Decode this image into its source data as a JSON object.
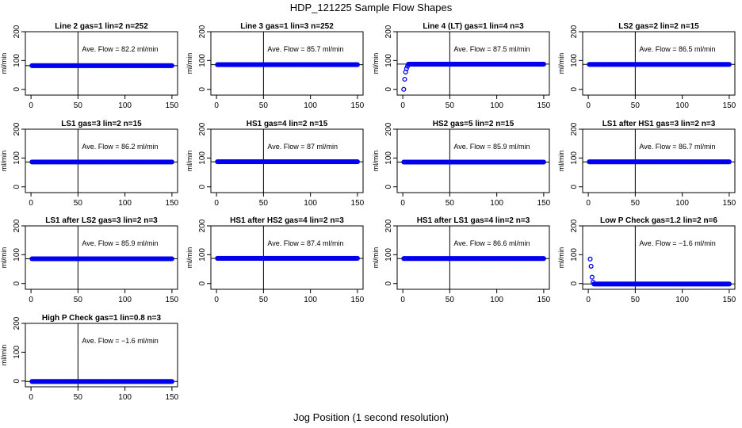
{
  "figure": {
    "title": "HDP_121225  Sample Flow Shapes",
    "xlabel": "Jog Position (1 second resolution)"
  },
  "chart_data": [
    {
      "type": "scatter",
      "title": "Line 2 gas=1 lin=2 n=252",
      "annotation": "Ave. Flow =  82.2  ml/min",
      "ylabel": "ml/min",
      "xlim": [
        0,
        150
      ],
      "ylim": [
        -20,
        200
      ],
      "xticks": [
        0,
        50,
        100,
        150
      ],
      "yticks": [
        0,
        100,
        200
      ],
      "vline_x": 50,
      "hline_y": 82.2,
      "x_range": [
        1,
        150
      ],
      "early_points": [],
      "flow_level": 82.2
    },
    {
      "type": "scatter",
      "title": "Line 3 gas=1 lin=3 n=252",
      "annotation": "Ave. Flow =  85.7  ml/min",
      "ylabel": "ml/min",
      "xlim": [
        0,
        150
      ],
      "ylim": [
        -20,
        200
      ],
      "xticks": [
        0,
        50,
        100,
        150
      ],
      "yticks": [
        0,
        100,
        200
      ],
      "vline_x": 50,
      "hline_y": 85.7,
      "x_range": [
        1,
        150
      ],
      "early_points": [],
      "flow_level": 85.7
    },
    {
      "type": "scatter",
      "title": "Line 4 (LT) gas=1 lin=4 n=3",
      "annotation": "Ave. Flow =  87.5  ml/min",
      "ylabel": "ml/min",
      "xlim": [
        0,
        150
      ],
      "ylim": [
        -20,
        200
      ],
      "xticks": [
        0,
        50,
        100,
        150
      ],
      "yticks": [
        0,
        100,
        200
      ],
      "vline_x": 50,
      "hline_y": 87.5,
      "x_range": [
        6,
        150
      ],
      "early_points": [
        [
          1,
          0
        ],
        [
          2,
          35
        ],
        [
          3,
          60
        ],
        [
          4,
          72
        ],
        [
          5,
          80
        ]
      ],
      "flow_level": 87.5
    },
    {
      "type": "scatter",
      "title": "LS2 gas=2 lin=2 n=15",
      "annotation": "Ave. Flow =  86.5  ml/min",
      "ylabel": "ml/min",
      "xlim": [
        0,
        150
      ],
      "ylim": [
        -20,
        200
      ],
      "xticks": [
        0,
        50,
        100,
        150
      ],
      "yticks": [
        0,
        100,
        200
      ],
      "vline_x": 50,
      "hline_y": 86.5,
      "x_range": [
        1,
        150
      ],
      "early_points": [],
      "flow_level": 86.5
    },
    {
      "type": "scatter",
      "title": "LS1 gas=3 lin=2 n=15",
      "annotation": "Ave. Flow =  86.2  ml/min",
      "ylabel": "ml/min",
      "xlim": [
        0,
        150
      ],
      "ylim": [
        -20,
        200
      ],
      "xticks": [
        0,
        50,
        100,
        150
      ],
      "yticks": [
        0,
        100,
        200
      ],
      "vline_x": 50,
      "hline_y": 86.2,
      "x_range": [
        1,
        150
      ],
      "early_points": [],
      "flow_level": 86.2
    },
    {
      "type": "scatter",
      "title": "HS1 gas=4 lin=2 n=15",
      "annotation": "Ave. Flow =  87  ml/min",
      "ylabel": "ml/min",
      "xlim": [
        0,
        150
      ],
      "ylim": [
        -20,
        200
      ],
      "xticks": [
        0,
        50,
        100,
        150
      ],
      "yticks": [
        0,
        100,
        200
      ],
      "vline_x": 50,
      "hline_y": 87,
      "x_range": [
        1,
        150
      ],
      "early_points": [],
      "flow_level": 87
    },
    {
      "type": "scatter",
      "title": "HS2 gas=5 lin=2 n=15",
      "annotation": "Ave. Flow =  85.9  ml/min",
      "ylabel": "ml/min",
      "xlim": [
        0,
        150
      ],
      "ylim": [
        -20,
        200
      ],
      "xticks": [
        0,
        50,
        100,
        150
      ],
      "yticks": [
        0,
        100,
        200
      ],
      "vline_x": 50,
      "hline_y": 85.9,
      "x_range": [
        1,
        150
      ],
      "early_points": [],
      "flow_level": 85.9
    },
    {
      "type": "scatter",
      "title": "LS1 after HS1 gas=3 lin=2 n=3",
      "annotation": "Ave. Flow =  86.7  ml/min",
      "ylabel": "ml/min",
      "xlim": [
        0,
        150
      ],
      "ylim": [
        -20,
        200
      ],
      "xticks": [
        0,
        50,
        100,
        150
      ],
      "yticks": [
        0,
        100,
        200
      ],
      "vline_x": 50,
      "hline_y": 86.7,
      "x_range": [
        1,
        150
      ],
      "early_points": [],
      "flow_level": 86.7
    },
    {
      "type": "scatter",
      "title": "LS1 after LS2 gas=3 lin=2 n=3",
      "annotation": "Ave. Flow =  85.9  ml/min",
      "ylabel": "ml/min",
      "xlim": [
        0,
        150
      ],
      "ylim": [
        -20,
        200
      ],
      "xticks": [
        0,
        50,
        100,
        150
      ],
      "yticks": [
        0,
        100,
        200
      ],
      "vline_x": 50,
      "hline_y": 85.9,
      "x_range": [
        1,
        150
      ],
      "early_points": [],
      "flow_level": 85.9
    },
    {
      "type": "scatter",
      "title": "HS1 after HS2 gas=4 lin=2 n=3",
      "annotation": "Ave. Flow =  87.4  ml/min",
      "ylabel": "ml/min",
      "xlim": [
        0,
        150
      ],
      "ylim": [
        -20,
        200
      ],
      "xticks": [
        0,
        50,
        100,
        150
      ],
      "yticks": [
        0,
        100,
        200
      ],
      "vline_x": 50,
      "hline_y": 87.4,
      "x_range": [
        1,
        150
      ],
      "early_points": [],
      "flow_level": 87.4
    },
    {
      "type": "scatter",
      "title": "HS1 after LS1 gas=4 lin=2 n=3",
      "annotation": "Ave. Flow =  86.6  ml/min",
      "ylabel": "ml/min",
      "xlim": [
        0,
        150
      ],
      "ylim": [
        -20,
        200
      ],
      "xticks": [
        0,
        50,
        100,
        150
      ],
      "yticks": [
        0,
        100,
        200
      ],
      "vline_x": 50,
      "hline_y": 86.6,
      "x_range": [
        1,
        150
      ],
      "early_points": [],
      "flow_level": 86.6
    },
    {
      "type": "scatter",
      "title": "Low P Check gas=1.2 lin=2 n=6",
      "annotation": "Ave. Flow =  −1.6  ml/min",
      "ylabel": "ml/min",
      "xlim": [
        0,
        150
      ],
      "ylim": [
        -20,
        200
      ],
      "xticks": [
        0,
        50,
        100,
        150
      ],
      "yticks": [
        0,
        100,
        200
      ],
      "vline_x": 50,
      "hline_y": -1.6,
      "x_range": [
        6,
        150
      ],
      "early_points": [
        [
          2,
          85
        ],
        [
          3,
          60
        ],
        [
          4,
          22
        ],
        [
          5,
          5
        ]
      ],
      "flow_level": -1.6
    },
    {
      "type": "scatter",
      "title": "High P Check gas=1 lin=0.8 n=3",
      "annotation": "Ave. Flow =  −1.6  ml/min",
      "ylabel": "ml/min",
      "xlim": [
        0,
        150
      ],
      "ylim": [
        -20,
        200
      ],
      "xticks": [
        0,
        50,
        100,
        150
      ],
      "yticks": [
        0,
        100,
        200
      ],
      "vline_x": 50,
      "hline_y": -1.6,
      "x_range": [
        1,
        150
      ],
      "early_points": [],
      "flow_level": -1.6
    }
  ]
}
